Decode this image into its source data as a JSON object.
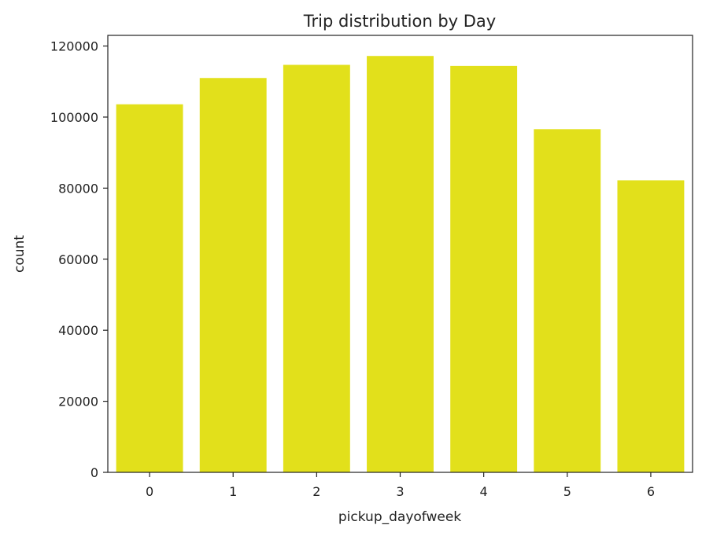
{
  "chart_data": {
    "type": "bar",
    "title": "Trip distribution by Day",
    "xlabel": "pickup_dayofweek",
    "ylabel": "count",
    "categories": [
      "0",
      "1",
      "2",
      "3",
      "4",
      "5",
      "6"
    ],
    "values": [
      103600,
      111000,
      114700,
      117200,
      114400,
      96600,
      82200
    ],
    "yticks": [
      0,
      20000,
      40000,
      60000,
      80000,
      100000,
      120000
    ],
    "ytick_labels": [
      "0",
      "20000",
      "40000",
      "60000",
      "80000",
      "100000",
      "120000"
    ],
    "ylim": [
      0,
      123000
    ],
    "grid": false,
    "bar_color": "#e2e01b"
  }
}
